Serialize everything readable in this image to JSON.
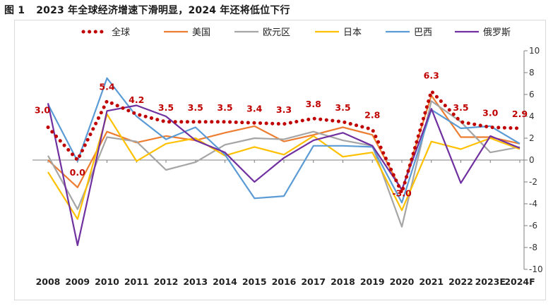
{
  "figure": {
    "number": "图 1",
    "title": "2023 年全球经济增速下滑明显，2024 年还将低位下行"
  },
  "chart_data": {
    "type": "line",
    "categories": [
      "2008",
      "2009",
      "2010",
      "2011",
      "2012",
      "2013",
      "2014",
      "2015",
      "2016",
      "2017",
      "2018",
      "2019",
      "2020",
      "2021",
      "2022",
      "2023E",
      "2024F"
    ],
    "ylim": [
      -10,
      10
    ],
    "yticks": [
      -10,
      -8,
      -6,
      -4,
      -2,
      0,
      2,
      4,
      6,
      8,
      10
    ],
    "grid": false,
    "legend_position": "top",
    "series": [
      {
        "name": "全球",
        "color": "#c00000",
        "style": "dotted",
        "values": [
          3.0,
          0.0,
          5.4,
          4.2,
          3.5,
          3.5,
          3.5,
          3.4,
          3.3,
          3.8,
          3.5,
          2.8,
          -3.0,
          6.3,
          3.5,
          3.0,
          2.9
        ],
        "labels": [
          "3.0",
          "0.0",
          "5.4",
          "4.2",
          "3.5",
          "3.5",
          "3.5",
          "3.4",
          "3.3",
          "3.8",
          "3.5",
          "2.8",
          "-3.0",
          "6.3",
          "3.5",
          "3.0",
          "2.9"
        ]
      },
      {
        "name": "美国",
        "color": "#ed7d31",
        "style": "solid",
        "values": [
          0.0,
          -2.5,
          2.6,
          1.6,
          2.2,
          1.8,
          2.5,
          3.1,
          1.7,
          2.3,
          3.0,
          2.3,
          -2.8,
          5.9,
          2.1,
          2.1,
          1.5
        ]
      },
      {
        "name": "欧元区",
        "color": "#a5a5a5",
        "style": "solid",
        "values": [
          0.4,
          -4.5,
          2.1,
          1.7,
          -0.9,
          -0.2,
          1.4,
          2.0,
          1.9,
          2.6,
          1.8,
          1.3,
          -6.1,
          5.4,
          3.5,
          0.7,
          1.2
        ]
      },
      {
        "name": "日本",
        "color": "#ffc000",
        "style": "solid",
        "values": [
          -1.1,
          -5.4,
          4.2,
          -0.1,
          1.5,
          2.0,
          0.4,
          1.2,
          0.5,
          2.2,
          0.3,
          0.7,
          -4.6,
          1.7,
          1.0,
          2.0,
          1.0
        ]
      },
      {
        "name": "巴西",
        "color": "#5b9bd5",
        "style": "solid",
        "values": [
          5.1,
          -0.1,
          7.5,
          4.0,
          1.9,
          3.0,
          0.5,
          -3.5,
          -3.3,
          1.3,
          1.3,
          1.2,
          -3.9,
          4.6,
          2.9,
          3.1,
          1.5
        ]
      },
      {
        "name": "俄罗斯",
        "color": "#7030a0",
        "style": "solid",
        "values": [
          5.2,
          -7.8,
          4.5,
          5.0,
          4.0,
          1.8,
          0.7,
          -2.0,
          0.2,
          1.8,
          2.5,
          1.3,
          -2.7,
          4.7,
          -2.1,
          2.2,
          1.1
        ]
      }
    ]
  }
}
